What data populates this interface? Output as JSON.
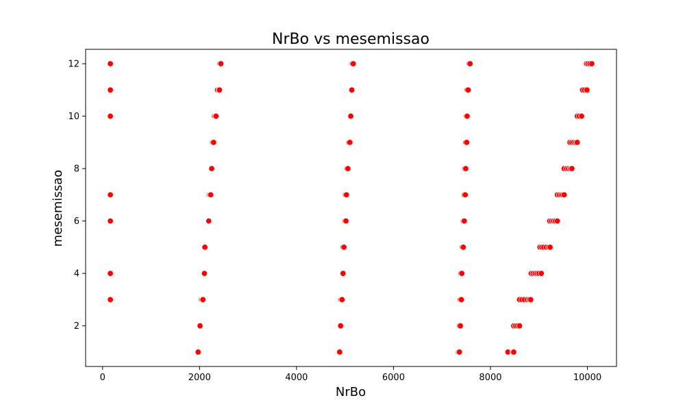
{
  "chart_data": {
    "type": "scatter",
    "title": "NrBo vs mesemissao",
    "xlabel": "NrBo",
    "ylabel": "mesemissao",
    "xlim": [
      -350,
      10600
    ],
    "ylim": [
      0.45,
      12.55
    ],
    "xticks": [
      0,
      2000,
      4000,
      6000,
      8000,
      10000
    ],
    "yticks": [
      2,
      4,
      6,
      8,
      10,
      12
    ],
    "grid": false,
    "marker_color": "#ff0000",
    "points": [
      {
        "x": 160,
        "y": 12
      },
      {
        "x": 160,
        "y": 11
      },
      {
        "x": 160,
        "y": 10
      },
      {
        "x": 160,
        "y": 7
      },
      {
        "x": 160,
        "y": 6
      },
      {
        "x": 160,
        "y": 4
      },
      {
        "x": 160,
        "y": 3
      },
      {
        "x": 1960,
        "y": 1
      },
      {
        "x": 1970,
        "y": 1
      },
      {
        "x": 2000,
        "y": 2
      },
      {
        "x": 2010,
        "y": 2
      },
      {
        "x": 2040,
        "y": 3
      },
      {
        "x": 2060,
        "y": 3
      },
      {
        "x": 2070,
        "y": 3
      },
      {
        "x": 2090,
        "y": 4
      },
      {
        "x": 2100,
        "y": 4
      },
      {
        "x": 2100,
        "y": 5
      },
      {
        "x": 2110,
        "y": 5
      },
      {
        "x": 2180,
        "y": 6
      },
      {
        "x": 2190,
        "y": 6
      },
      {
        "x": 2200,
        "y": 7
      },
      {
        "x": 2220,
        "y": 7
      },
      {
        "x": 2230,
        "y": 7
      },
      {
        "x": 2240,
        "y": 8
      },
      {
        "x": 2250,
        "y": 8
      },
      {
        "x": 2270,
        "y": 9
      },
      {
        "x": 2290,
        "y": 9
      },
      {
        "x": 2300,
        "y": 10
      },
      {
        "x": 2320,
        "y": 10
      },
      {
        "x": 2340,
        "y": 10
      },
      {
        "x": 2370,
        "y": 11
      },
      {
        "x": 2400,
        "y": 11
      },
      {
        "x": 2410,
        "y": 11
      },
      {
        "x": 2420,
        "y": 12
      },
      {
        "x": 2440,
        "y": 12
      },
      {
        "x": 4880,
        "y": 1
      },
      {
        "x": 4890,
        "y": 1
      },
      {
        "x": 4900,
        "y": 2
      },
      {
        "x": 4910,
        "y": 2
      },
      {
        "x": 4920,
        "y": 3
      },
      {
        "x": 4940,
        "y": 3
      },
      {
        "x": 4950,
        "y": 4
      },
      {
        "x": 4960,
        "y": 4
      },
      {
        "x": 4960,
        "y": 5
      },
      {
        "x": 4980,
        "y": 5
      },
      {
        "x": 5000,
        "y": 6
      },
      {
        "x": 5020,
        "y": 6
      },
      {
        "x": 5010,
        "y": 7
      },
      {
        "x": 5030,
        "y": 7
      },
      {
        "x": 5040,
        "y": 8
      },
      {
        "x": 5060,
        "y": 8
      },
      {
        "x": 5080,
        "y": 9
      },
      {
        "x": 5100,
        "y": 9
      },
      {
        "x": 5110,
        "y": 10
      },
      {
        "x": 5120,
        "y": 10
      },
      {
        "x": 5130,
        "y": 11
      },
      {
        "x": 5140,
        "y": 11
      },
      {
        "x": 5150,
        "y": 12
      },
      {
        "x": 5170,
        "y": 12
      },
      {
        "x": 7340,
        "y": 1
      },
      {
        "x": 7360,
        "y": 1
      },
      {
        "x": 7360,
        "y": 2
      },
      {
        "x": 7380,
        "y": 2
      },
      {
        "x": 7380,
        "y": 3
      },
      {
        "x": 7400,
        "y": 3
      },
      {
        "x": 7390,
        "y": 4
      },
      {
        "x": 7410,
        "y": 4
      },
      {
        "x": 7420,
        "y": 5
      },
      {
        "x": 7440,
        "y": 5
      },
      {
        "x": 7440,
        "y": 6
      },
      {
        "x": 7460,
        "y": 6
      },
      {
        "x": 7460,
        "y": 7
      },
      {
        "x": 7480,
        "y": 7
      },
      {
        "x": 7470,
        "y": 8
      },
      {
        "x": 7490,
        "y": 8
      },
      {
        "x": 7490,
        "y": 9
      },
      {
        "x": 7510,
        "y": 9
      },
      {
        "x": 7500,
        "y": 10
      },
      {
        "x": 7520,
        "y": 10
      },
      {
        "x": 7520,
        "y": 11
      },
      {
        "x": 7540,
        "y": 11
      },
      {
        "x": 7560,
        "y": 12
      },
      {
        "x": 7580,
        "y": 12
      },
      {
        "x": 8360,
        "y": 1
      },
      {
        "x": 8460,
        "y": 1
      },
      {
        "x": 8480,
        "y": 1
      },
      {
        "x": 8480,
        "y": 2
      },
      {
        "x": 8520,
        "y": 2
      },
      {
        "x": 8560,
        "y": 2
      },
      {
        "x": 8600,
        "y": 2
      },
      {
        "x": 8600,
        "y": 3
      },
      {
        "x": 8650,
        "y": 3
      },
      {
        "x": 8700,
        "y": 3
      },
      {
        "x": 8760,
        "y": 3
      },
      {
        "x": 8800,
        "y": 3
      },
      {
        "x": 8830,
        "y": 3
      },
      {
        "x": 8840,
        "y": 4
      },
      {
        "x": 8880,
        "y": 4
      },
      {
        "x": 8920,
        "y": 4
      },
      {
        "x": 8960,
        "y": 4
      },
      {
        "x": 9000,
        "y": 4
      },
      {
        "x": 9050,
        "y": 4
      },
      {
        "x": 9020,
        "y": 5
      },
      {
        "x": 9060,
        "y": 5
      },
      {
        "x": 9100,
        "y": 5
      },
      {
        "x": 9150,
        "y": 5
      },
      {
        "x": 9200,
        "y": 5
      },
      {
        "x": 9230,
        "y": 5
      },
      {
        "x": 9220,
        "y": 6
      },
      {
        "x": 9260,
        "y": 6
      },
      {
        "x": 9300,
        "y": 6
      },
      {
        "x": 9340,
        "y": 6
      },
      {
        "x": 9380,
        "y": 6
      },
      {
        "x": 9380,
        "y": 7
      },
      {
        "x": 9420,
        "y": 7
      },
      {
        "x": 9460,
        "y": 7
      },
      {
        "x": 9490,
        "y": 7
      },
      {
        "x": 9520,
        "y": 7
      },
      {
        "x": 9520,
        "y": 8
      },
      {
        "x": 9570,
        "y": 8
      },
      {
        "x": 9610,
        "y": 8
      },
      {
        "x": 9650,
        "y": 8
      },
      {
        "x": 9680,
        "y": 8
      },
      {
        "x": 9640,
        "y": 9
      },
      {
        "x": 9680,
        "y": 9
      },
      {
        "x": 9720,
        "y": 9
      },
      {
        "x": 9760,
        "y": 9
      },
      {
        "x": 9790,
        "y": 9
      },
      {
        "x": 9790,
        "y": 10
      },
      {
        "x": 9830,
        "y": 10
      },
      {
        "x": 9880,
        "y": 10
      },
      {
        "x": 9900,
        "y": 11
      },
      {
        "x": 9940,
        "y": 11
      },
      {
        "x": 9990,
        "y": 11
      },
      {
        "x": 9980,
        "y": 12
      },
      {
        "x": 10010,
        "y": 12
      },
      {
        "x": 10050,
        "y": 12
      },
      {
        "x": 10090,
        "y": 12
      }
    ]
  }
}
